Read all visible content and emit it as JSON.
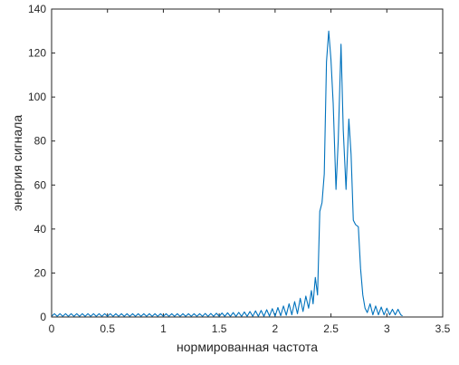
{
  "chart_data": {
    "type": "line",
    "title": "",
    "xlabel": "нормированная частота",
    "ylabel": "энергия сигнала",
    "xlim": [
      0,
      3.5
    ],
    "ylim": [
      0,
      140
    ],
    "xticks": [
      0,
      0.5,
      1,
      1.5,
      2,
      2.5,
      3,
      3.5
    ],
    "xtick_labels": [
      "0",
      "0.5",
      "1",
      "1.5",
      "2",
      "2.5",
      "3",
      "3.5"
    ],
    "yticks": [
      0,
      20,
      40,
      60,
      80,
      100,
      120,
      140
    ],
    "ytick_labels": [
      "0",
      "20",
      "40",
      "60",
      "80",
      "100",
      "120",
      "140"
    ],
    "grid": false,
    "box": true,
    "series": [
      {
        "color": "#0072BD",
        "points": [
          [
            0.0,
            0.3
          ],
          [
            0.025,
            1.5
          ],
          [
            0.05,
            0.3
          ],
          [
            0.075,
            1.5
          ],
          [
            0.1,
            0.3
          ],
          [
            0.125,
            1.5
          ],
          [
            0.15,
            0.3
          ],
          [
            0.175,
            1.5
          ],
          [
            0.2,
            0.3
          ],
          [
            0.225,
            1.5
          ],
          [
            0.25,
            0.3
          ],
          [
            0.275,
            1.5
          ],
          [
            0.3,
            0.3
          ],
          [
            0.325,
            1.5
          ],
          [
            0.35,
            0.3
          ],
          [
            0.375,
            1.5
          ],
          [
            0.4,
            0.3
          ],
          [
            0.425,
            1.5
          ],
          [
            0.45,
            0.3
          ],
          [
            0.475,
            1.5
          ],
          [
            0.5,
            0.3
          ],
          [
            0.525,
            1.5
          ],
          [
            0.55,
            0.3
          ],
          [
            0.575,
            1.5
          ],
          [
            0.6,
            0.3
          ],
          [
            0.625,
            1.5
          ],
          [
            0.65,
            0.3
          ],
          [
            0.675,
            1.5
          ],
          [
            0.7,
            0.3
          ],
          [
            0.725,
            1.5
          ],
          [
            0.75,
            0.3
          ],
          [
            0.775,
            1.5
          ],
          [
            0.8,
            0.3
          ],
          [
            0.825,
            1.5
          ],
          [
            0.85,
            0.3
          ],
          [
            0.875,
            1.5
          ],
          [
            0.9,
            0.3
          ],
          [
            0.925,
            1.5
          ],
          [
            0.95,
            0.3
          ],
          [
            0.975,
            1.5
          ],
          [
            1.0,
            0.3
          ],
          [
            1.025,
            1.5
          ],
          [
            1.05,
            0.3
          ],
          [
            1.075,
            1.5
          ],
          [
            1.1,
            0.3
          ],
          [
            1.125,
            1.5
          ],
          [
            1.15,
            0.3
          ],
          [
            1.175,
            1.5
          ],
          [
            1.2,
            0.3
          ],
          [
            1.225,
            1.5
          ],
          [
            1.25,
            0.3
          ],
          [
            1.275,
            1.5
          ],
          [
            1.3,
            0.3
          ],
          [
            1.325,
            1.5
          ],
          [
            1.35,
            0.3
          ],
          [
            1.375,
            1.6
          ],
          [
            1.4,
            0.3
          ],
          [
            1.425,
            1.6
          ],
          [
            1.45,
            0.3
          ],
          [
            1.475,
            1.7
          ],
          [
            1.5,
            0.3
          ],
          [
            1.525,
            1.8
          ],
          [
            1.55,
            0.3
          ],
          [
            1.575,
            1.9
          ],
          [
            1.6,
            0.3
          ],
          [
            1.625,
            2.0
          ],
          [
            1.65,
            0.3
          ],
          [
            1.675,
            2.1
          ],
          [
            1.7,
            0.3
          ],
          [
            1.725,
            2.3
          ],
          [
            1.75,
            0.3
          ],
          [
            1.775,
            2.5
          ],
          [
            1.8,
            0.3
          ],
          [
            1.825,
            2.8
          ],
          [
            1.85,
            0.3
          ],
          [
            1.875,
            3.0
          ],
          [
            1.9,
            0.3
          ],
          [
            1.925,
            3.3
          ],
          [
            1.95,
            0.4
          ],
          [
            1.975,
            3.8
          ],
          [
            2.0,
            0.4
          ],
          [
            2.025,
            4.3
          ],
          [
            2.05,
            0.6
          ],
          [
            2.075,
            5.0
          ],
          [
            2.1,
            0.8
          ],
          [
            2.125,
            6.0
          ],
          [
            2.15,
            1.0
          ],
          [
            2.175,
            7.0
          ],
          [
            2.2,
            1.5
          ],
          [
            2.225,
            8.5
          ],
          [
            2.25,
            2.5
          ],
          [
            2.275,
            9.5
          ],
          [
            2.3,
            4.0
          ],
          [
            2.325,
            12.0
          ],
          [
            2.34,
            6.0
          ],
          [
            2.36,
            18.0
          ],
          [
            2.38,
            10.0
          ],
          [
            2.4,
            48.0
          ],
          [
            2.42,
            52.0
          ],
          [
            2.44,
            65.0
          ],
          [
            2.46,
            116.0
          ],
          [
            2.48,
            130.0
          ],
          [
            2.5,
            117.0
          ],
          [
            2.52,
            97.0
          ],
          [
            2.545,
            58.0
          ],
          [
            2.565,
            80.0
          ],
          [
            2.59,
            124.0
          ],
          [
            2.61,
            85.0
          ],
          [
            2.635,
            58.0
          ],
          [
            2.66,
            90.0
          ],
          [
            2.68,
            74.0
          ],
          [
            2.7,
            44.0
          ],
          [
            2.72,
            42.0
          ],
          [
            2.745,
            41.0
          ],
          [
            2.765,
            22.0
          ],
          [
            2.785,
            10.0
          ],
          [
            2.805,
            4.0
          ],
          [
            2.825,
            2.0
          ],
          [
            2.85,
            6.0
          ],
          [
            2.875,
            1.0
          ],
          [
            2.9,
            5.0
          ],
          [
            2.925,
            1.0
          ],
          [
            2.95,
            4.5
          ],
          [
            2.975,
            1.0
          ],
          [
            3.0,
            4.0
          ],
          [
            3.025,
            1.0
          ],
          [
            3.05,
            3.5
          ],
          [
            3.075,
            1.0
          ],
          [
            3.1,
            3.5
          ],
          [
            3.125,
            1.0
          ],
          [
            3.14,
            0.5
          ]
        ]
      }
    ]
  }
}
